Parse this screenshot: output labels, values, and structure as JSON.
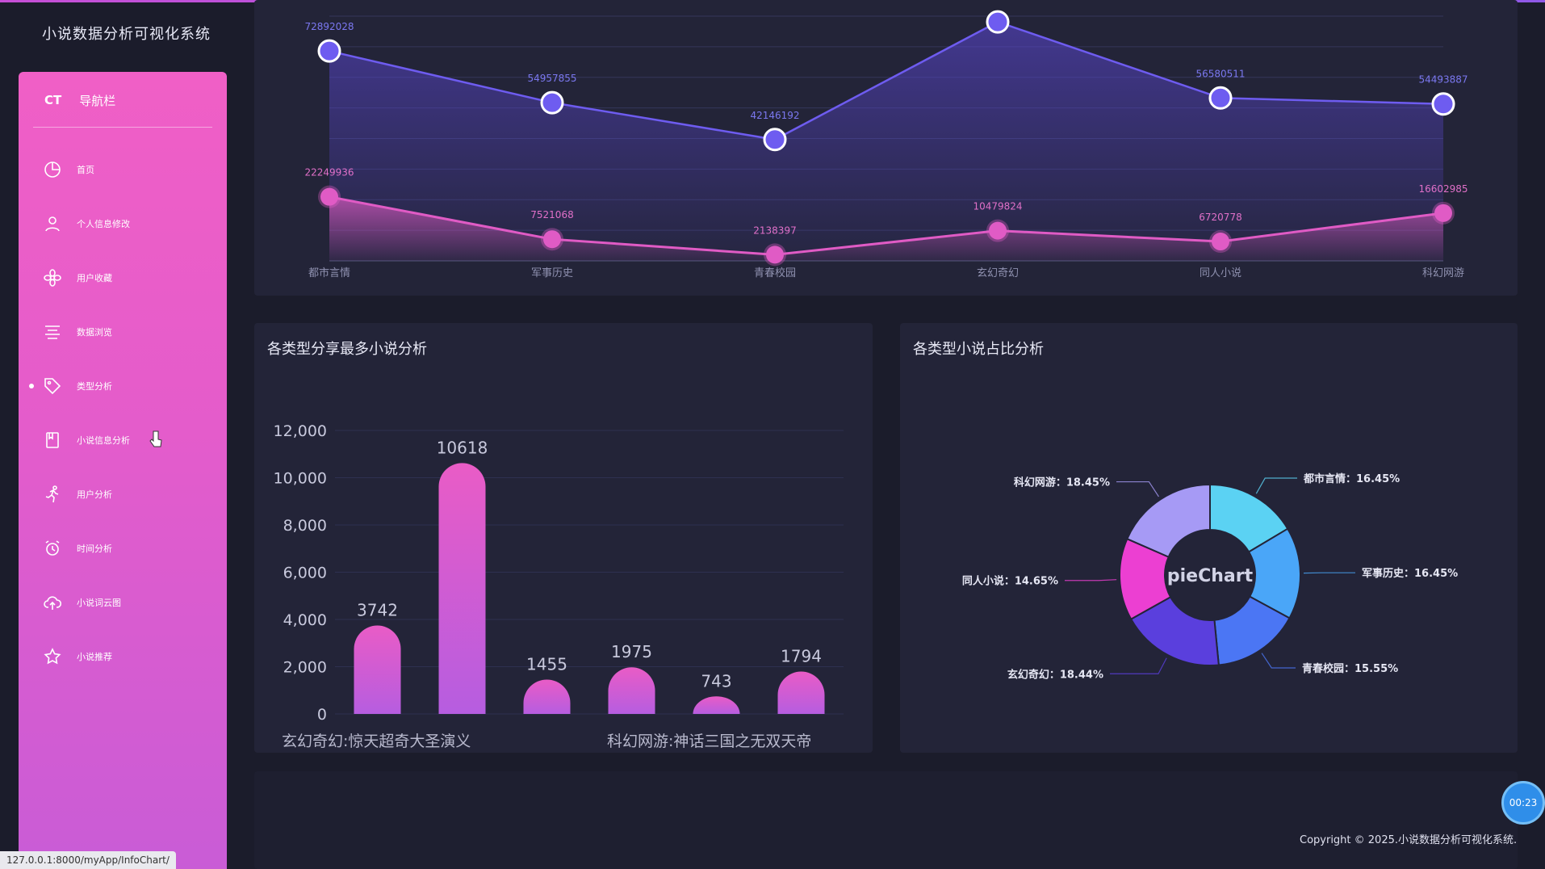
{
  "app": {
    "title": "小说数据分析可视化系统"
  },
  "sidebar": {
    "brand": "CT",
    "title": "导航栏",
    "items": [
      {
        "label": "首页",
        "icon": "pie-chart-icon"
      },
      {
        "label": "个人信息修改",
        "icon": "user-icon"
      },
      {
        "label": "用户收藏",
        "icon": "flower-icon"
      },
      {
        "label": "数据浏览",
        "icon": "menu-icon"
      },
      {
        "label": "类型分析",
        "icon": "tag-icon",
        "active": true
      },
      {
        "label": "小说信息分析",
        "icon": "book-icon"
      },
      {
        "label": "用户分析",
        "icon": "runner-icon"
      },
      {
        "label": "时间分析",
        "icon": "alarm-clock-icon"
      },
      {
        "label": "小说词云图",
        "icon": "cloud-upload-icon"
      },
      {
        "label": "小说推荐",
        "icon": "star-icon"
      }
    ]
  },
  "footer": {
    "copyright": "Copyright © 2025.小说数据分析可视化系统.",
    "status_url": "127.0.0.1:8000/myApp/InfoChart/",
    "timer": "00:23"
  },
  "bar_panel": {
    "title": "各类型分享最多小说分析"
  },
  "pie_panel": {
    "title": "各类型小说占比分析"
  },
  "chart_data": [
    {
      "type": "line",
      "categories": [
        "都市言情",
        "军事历史",
        "青春校园",
        "玄幻奇幻",
        "同人小说",
        "科幻网游"
      ],
      "series": [
        {
          "values": [
            72892028,
            54957855,
            42146192,
            83000000,
            56580511,
            54493887
          ],
          "color": "#6e5cf0"
        },
        {
          "values": [
            22249936,
            7521068,
            2138397,
            10479824,
            6720778,
            16602985
          ],
          "color": "#e05bc5"
        }
      ],
      "data_labels": [
        [
          "72892028",
          "54957855",
          "42146192",
          "",
          "56580511",
          "54493887"
        ],
        [
          "22249936",
          "7521068",
          "2138397",
          "10479824",
          "6720778",
          "16602985"
        ]
      ],
      "ylim": [
        0,
        85000000
      ]
    },
    {
      "type": "bar",
      "categories": [
        "",
        "",
        "",
        "",
        "",
        ""
      ],
      "x_tick_labels": [
        "玄幻奇幻:惊天超奇大圣演义",
        "科幻网游:神话三国之无双天帝"
      ],
      "values": [
        3742,
        10618,
        1455,
        1975,
        743,
        1794
      ],
      "y_ticks": [
        "0",
        "2,000",
        "4,000",
        "6,000",
        "8,000",
        "10,000",
        "12,000"
      ],
      "ylim": [
        0,
        12000
      ],
      "colors": [
        "#e95cc6",
        "#b65de0"
      ]
    },
    {
      "type": "pie",
      "center_label": "pieChart",
      "slices": [
        {
          "label": "都市言情",
          "value": 16.45,
          "text": "都市言情：16.45%",
          "color": "#5bd2f3"
        },
        {
          "label": "军事历史",
          "value": 16.45,
          "text": "军事历史：16.45%",
          "color": "#4aa6f8"
        },
        {
          "label": "青春校园",
          "value": 15.55,
          "text": "青春校园：15.55%",
          "color": "#4b76f4"
        },
        {
          "label": "玄幻奇幻",
          "value": 18.44,
          "text": "玄幻奇幻：18.44%",
          "color": "#5a3fdd"
        },
        {
          "label": "同人小说",
          "value": 14.65,
          "text": "同人小说：14.65%",
          "color": "#ec3fd2"
        },
        {
          "label": "科幻网游",
          "value": 18.45,
          "text": "科幻网游：18.45%",
          "color": "#a69af5"
        }
      ]
    }
  ]
}
